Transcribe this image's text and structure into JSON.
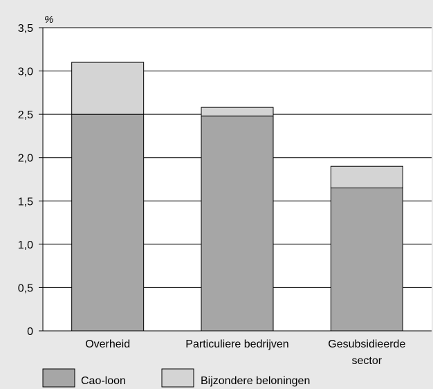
{
  "chart_data": {
    "type": "bar",
    "stacked": true,
    "unit_label": "%",
    "categories": [
      [
        "Overheid"
      ],
      [
        "Particuliere bedrijven"
      ],
      [
        "Gesubsidieerde",
        "sector"
      ]
    ],
    "series": [
      {
        "name": "Cao-loon",
        "values": [
          2.5,
          2.48,
          1.65
        ],
        "color": "#a6a6a6"
      },
      {
        "name": "Bijzondere beloningen",
        "values": [
          0.6,
          0.1,
          0.25
        ],
        "color": "#d4d4d4"
      }
    ],
    "yticks": [
      "0",
      "0,5",
      "1,0",
      "1,5",
      "2,0",
      "2,5",
      "3,0",
      "3,5"
    ],
    "ylim": [
      0,
      3.5
    ],
    "ystep": 0.5,
    "grid": true,
    "legend_position": "bottom-left",
    "colors": {
      "background": "#e8e8e8",
      "plot_background": "#ffffff",
      "axis": "#000000"
    }
  }
}
